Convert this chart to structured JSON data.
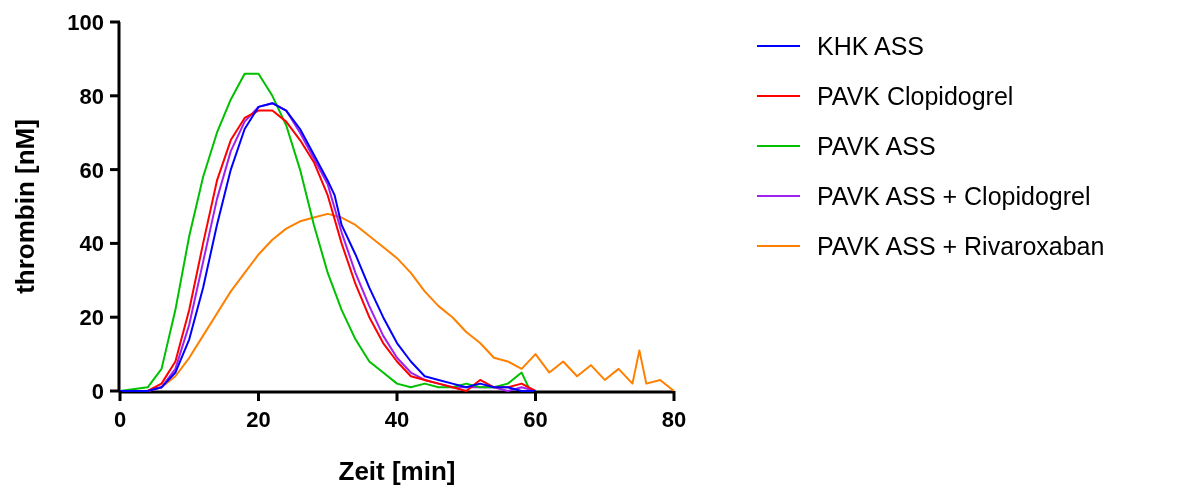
{
  "chart_data": {
    "type": "line",
    "xlabel": "Zeit [min]",
    "ylabel": "thrombin [nM]",
    "xlim": [
      0,
      80
    ],
    "xticks": [
      0,
      20,
      40,
      60,
      80
    ],
    "ylim": [
      0,
      100
    ],
    "yticks": [
      0,
      20,
      40,
      60,
      80,
      100
    ],
    "grid": false,
    "legend": "top right",
    "marker": "none",
    "line_style": "solid",
    "series": [
      {
        "name": "KHK ASS",
        "color": "#0000ff",
        "x": [
          0,
          2,
          4,
          6,
          8,
          10,
          12,
          14,
          16,
          18,
          20,
          22,
          24,
          26,
          28,
          30,
          31,
          32,
          34,
          36,
          38,
          40,
          42,
          44,
          46,
          48,
          50,
          52,
          54,
          56,
          58,
          60
        ],
        "values": [
          0,
          0,
          0,
          1,
          5,
          14,
          28,
          45,
          60,
          71,
          77,
          78,
          76,
          71,
          64,
          57,
          53,
          45,
          37,
          28,
          20,
          13,
          8,
          4,
          3,
          2,
          1,
          2,
          1,
          1,
          0,
          0
        ]
      },
      {
        "name": "PAVK Clopidogrel",
        "color": "#ff0000",
        "x": [
          0,
          4,
          6,
          8,
          10,
          12,
          14,
          16,
          18,
          20,
          22,
          24,
          26,
          28,
          30,
          32,
          34,
          36,
          38,
          40,
          42,
          44,
          46,
          48,
          50,
          52,
          54,
          56,
          58,
          60
        ],
        "values": [
          0,
          0,
          2,
          8,
          22,
          40,
          57,
          68,
          74,
          76,
          76,
          73,
          68,
          62,
          53,
          40,
          29,
          20,
          13,
          8,
          4,
          3,
          2,
          1,
          0,
          3,
          1,
          1,
          2,
          0
        ]
      },
      {
        "name": "PAVK ASS",
        "color": "#00c000",
        "x": [
          0,
          4,
          6,
          8,
          10,
          12,
          14,
          16,
          18,
          20,
          22,
          24,
          26,
          28,
          30,
          32,
          34,
          36,
          38,
          40,
          42,
          44,
          46,
          48,
          50,
          52,
          54,
          56,
          58,
          59
        ],
        "values": [
          0,
          1,
          6,
          22,
          42,
          58,
          70,
          79,
          86,
          86,
          80,
          72,
          60,
          45,
          32,
          22,
          14,
          8,
          5,
          2,
          1,
          2,
          1,
          1,
          2,
          1,
          1,
          2,
          5,
          1
        ]
      },
      {
        "name": "PAVK ASS + Clopidogrel",
        "color": "#a020f0",
        "x": [
          0,
          4,
          6,
          8,
          10,
          12,
          14,
          16,
          18,
          20,
          22,
          24,
          26,
          28,
          30,
          32,
          34,
          36,
          38,
          40,
          42,
          44,
          46,
          48,
          50,
          52,
          54,
          56,
          58,
          60
        ],
        "values": [
          0,
          0,
          1,
          6,
          18,
          35,
          52,
          65,
          73,
          77,
          78,
          76,
          70,
          63,
          56,
          43,
          32,
          23,
          15,
          9,
          5,
          3,
          2,
          1,
          1,
          1,
          1,
          0,
          1,
          0
        ]
      },
      {
        "name": "PAVK ASS + Rivaroxaban",
        "color": "#ff8000",
        "x": [
          0,
          4,
          6,
          8,
          10,
          12,
          14,
          16,
          18,
          20,
          22,
          24,
          26,
          28,
          30,
          32,
          34,
          36,
          38,
          40,
          42,
          44,
          46,
          48,
          50,
          52,
          54,
          56,
          58,
          60,
          62,
          64,
          66,
          68,
          70,
          72,
          74,
          75,
          76,
          78,
          80
        ],
        "values": [
          0,
          0,
          1,
          4,
          9,
          15,
          21,
          27,
          32,
          37,
          41,
          44,
          46,
          47,
          48,
          47,
          45,
          42,
          39,
          36,
          32,
          27,
          23,
          20,
          16,
          13,
          9,
          8,
          6,
          10,
          5,
          8,
          4,
          7,
          3,
          6,
          2,
          11,
          2,
          3,
          0
        ]
      }
    ]
  }
}
